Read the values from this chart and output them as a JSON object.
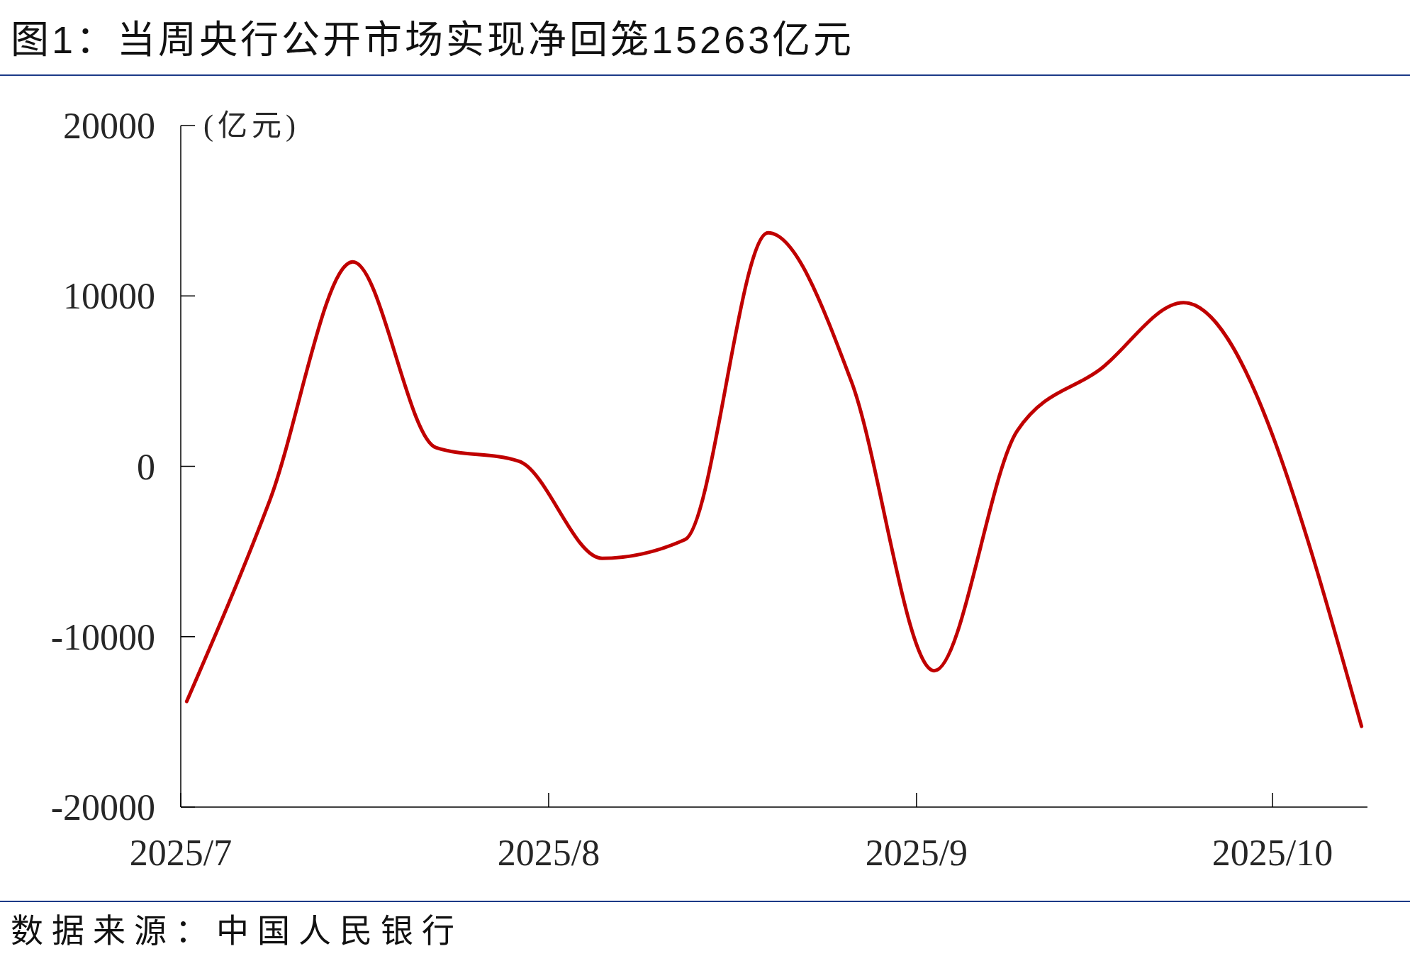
{
  "chart_data": {
    "type": "line",
    "title": "图1：当周央行公开市场实现净回笼15263亿元",
    "ylabel": "(亿元)",
    "annotations": [
      "数据来源：中国人民银行"
    ],
    "x": [
      "2025-07-04",
      "2025-07-11",
      "2025-07-18",
      "2025-07-25",
      "2025-08-01",
      "2025-08-08",
      "2025-08-15",
      "2025-08-22",
      "2025-08-29",
      "2025-09-05",
      "2025-09-12",
      "2025-09-19",
      "2025-09-26",
      "2025-10-11"
    ],
    "series": [
      {
        "color": "#c00000",
        "values": [
          -13800,
          -2000,
          12000,
          1100,
          300,
          -5400,
          -4300,
          13700,
          5000,
          -12000,
          2100,
          5700,
          9600,
          -15263
        ]
      }
    ],
    "xlim": [
      "2025-07-03T12:00",
      "2025-10-11T12:00"
    ],
    "xticks": [
      {
        "value": "2025-07-03T12:00",
        "label": "2025/7"
      },
      {
        "value": "2025-08-03T12:00",
        "label": "2025/8"
      },
      {
        "value": "2025-09-03T12:00",
        "label": "2025/9"
      },
      {
        "value": "2025-10-03T12:00",
        "label": "2025/10"
      }
    ],
    "ylim": [
      -20000,
      20000
    ],
    "yticks": [
      -20000,
      -10000,
      0,
      10000,
      20000
    ],
    "grid": false,
    "legend": false,
    "marker": "none",
    "line_style": "solid"
  }
}
